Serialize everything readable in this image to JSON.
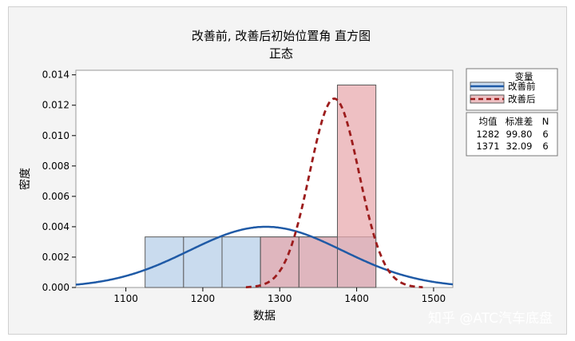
{
  "chart_data": {
    "type": "histogram",
    "title": "改善前, 改善后初始位置角 直方图",
    "subtitle": "正态",
    "xlabel": "数据",
    "ylabel": "密度",
    "xlim": [
      1035,
      1525
    ],
    "ylim": [
      0,
      0.0143
    ],
    "x_ticks": [
      1100,
      1200,
      1300,
      1400,
      1500
    ],
    "y_ticks": [
      0,
      0.002,
      0.004,
      0.006,
      0.008,
      0.01,
      0.012,
      0.014
    ],
    "y_tick_labels": [
      "0.000",
      "0.002",
      "0.004",
      "0.006",
      "0.008",
      "0.010",
      "0.012",
      "0.014"
    ],
    "bin_width": 50,
    "bin_edges_before": [
      1125,
      1175,
      1225,
      1275,
      1325,
      1375,
      1425
    ],
    "bin_edges_after": [
      1275,
      1325,
      1375,
      1425
    ],
    "legend_title": "变量",
    "series": [
      {
        "name": "改善前",
        "color": "#1f5aa6",
        "fill": "#c9dbee",
        "line": "solid",
        "bins": [
          {
            "x0": 1125,
            "x1": 1175,
            "density": 0.00333
          },
          {
            "x0": 1175,
            "x1": 1225,
            "density": 0.00333
          },
          {
            "x0": 1225,
            "x1": 1275,
            "density": 0.00333
          },
          {
            "x0": 1275,
            "x1": 1325,
            "density": 0.00333
          },
          {
            "x0": 1325,
            "x1": 1375,
            "density": 0.00333
          },
          {
            "x0": 1375,
            "x1": 1425,
            "density": 0.00333
          }
        ],
        "mean": 1282,
        "stdev": 99.8,
        "n": 6
      },
      {
        "name": "改善后",
        "color": "#9c1c1c",
        "fill": "#e8a8ac",
        "line": "dashed",
        "bins": [
          {
            "x0": 1275,
            "x1": 1325,
            "density": 0.00333
          },
          {
            "x0": 1325,
            "x1": 1375,
            "density": 0.00333
          },
          {
            "x0": 1375,
            "x1": 1425,
            "density": 0.01333
          }
        ],
        "mean": 1371,
        "stdev": 32.09,
        "n": 6
      }
    ],
    "stats_table": {
      "headers": [
        "均值",
        "标准差",
        "N"
      ],
      "rows": [
        [
          "1282",
          "99.80",
          "6"
        ],
        [
          "1371",
          "32.09",
          "6"
        ]
      ]
    }
  },
  "watermark": "知乎 @ATC汽车底盘"
}
